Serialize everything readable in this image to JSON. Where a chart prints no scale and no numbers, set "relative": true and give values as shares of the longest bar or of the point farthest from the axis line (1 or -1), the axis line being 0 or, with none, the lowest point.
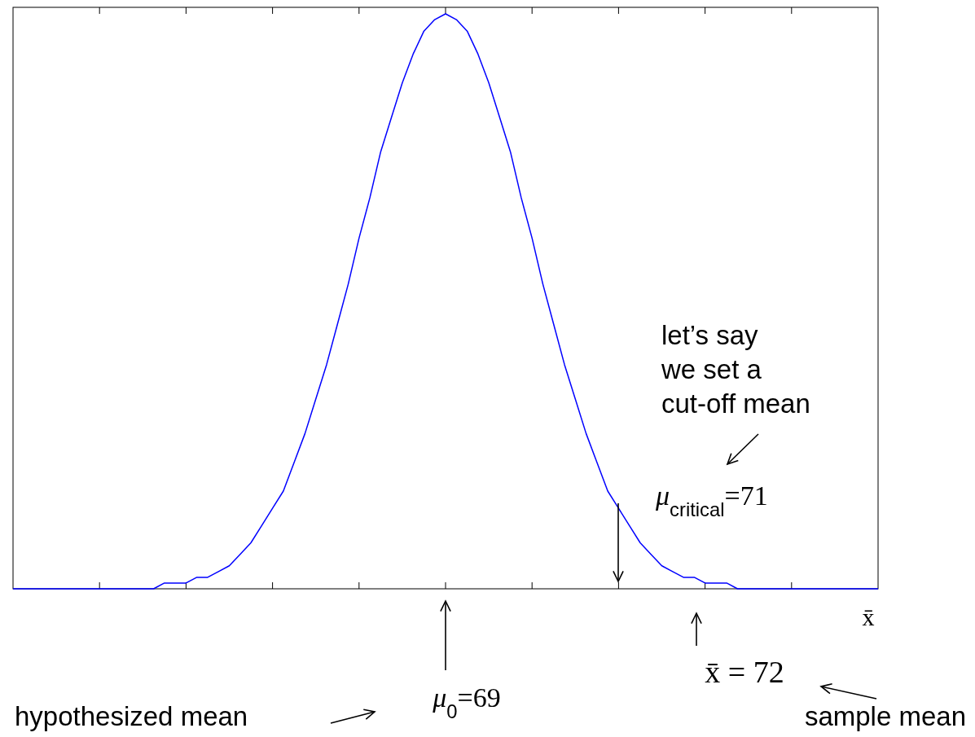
{
  "chart_data": {
    "type": "line",
    "relative": true,
    "xlabel": "x̄",
    "marker": "none",
    "line_style": "solid",
    "categories": [
      null,
      null,
      null,
      null,
      null,
      null,
      null,
      null,
      null,
      null,
      null,
      null,
      null,
      null,
      null,
      null,
      null,
      null,
      null,
      null,
      null,
      null,
      null,
      null,
      null,
      null,
      null,
      null,
      null,
      null,
      null,
      null,
      null,
      null,
      null,
      null,
      null,
      null,
      null,
      null,
      null,
      null,
      null,
      null,
      null,
      null,
      null,
      null,
      null,
      null,
      null,
      null,
      null,
      null,
      null,
      null,
      null,
      null,
      null,
      null,
      null,
      null,
      null,
      null,
      null,
      null,
      null,
      null,
      null,
      null,
      null,
      null,
      null,
      null,
      null,
      null,
      null,
      null,
      null,
      null,
      null
    ],
    "series": [
      {
        "color": "#0000ff",
        "values": [
          0,
          0,
          0,
          0,
          0,
          0,
          0,
          0,
          0,
          0,
          0,
          0,
          0,
          0,
          0.01,
          0.01,
          0.01,
          0.02,
          0.02,
          0.03,
          0.04,
          0.06,
          0.08,
          0.11,
          0.14,
          0.17,
          0.22,
          0.27,
          0.33,
          0.39,
          0.46,
          0.53,
          0.61,
          0.68,
          0.76,
          0.82,
          0.88,
          0.93,
          0.97,
          0.99,
          1,
          0.99,
          0.97,
          0.93,
          0.88,
          0.82,
          0.76,
          0.68,
          0.61,
          0.53,
          0.46,
          0.39,
          0.33,
          0.27,
          0.22,
          0.17,
          0.14,
          0.11,
          0.08,
          0.06,
          0.04,
          0.03,
          0.02,
          0.02,
          0.01,
          0.01,
          0.01,
          0,
          0,
          0,
          0,
          0,
          0,
          0,
          0,
          0,
          0,
          0,
          0,
          0,
          0
        ]
      }
    ],
    "annotations": [
      "μ$_{0}$=69",
      "μ$_{critical}$=71",
      "x̄ = 72",
      "let’s say\nwe set a\ncut-off mean",
      "hypothesized mean",
      "sample mean"
    ]
  }
}
